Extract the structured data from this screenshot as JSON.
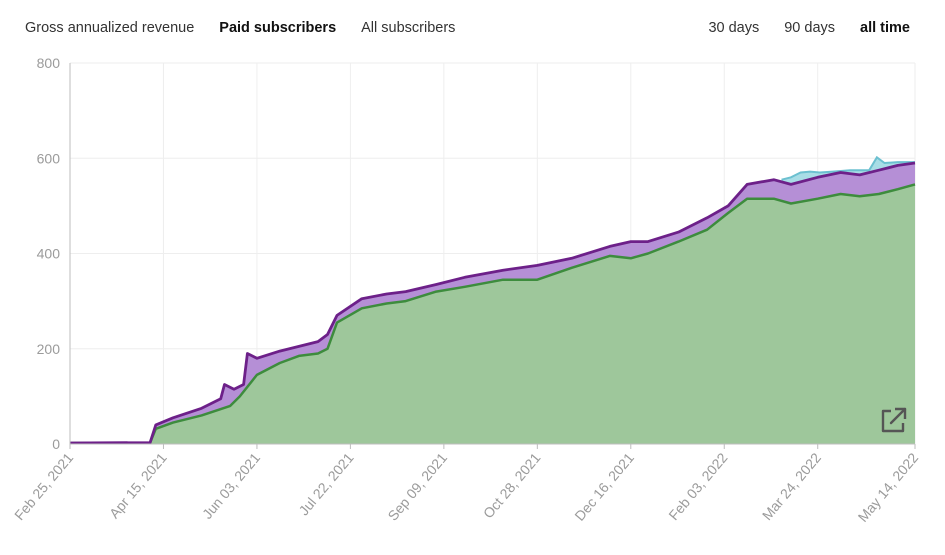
{
  "tabs_left": [
    {
      "label": "Gross annualized revenue",
      "active": false
    },
    {
      "label": "Paid subscribers",
      "active": true
    },
    {
      "label": "All subscribers",
      "active": false
    }
  ],
  "tabs_right": [
    {
      "label": "30 days",
      "active": false
    },
    {
      "label": "90 days",
      "active": false
    },
    {
      "label": "all time",
      "active": true
    }
  ],
  "popout_icon": "external-link-icon",
  "colors": {
    "grid": "#eeeeee",
    "axis": "#bdbdbd",
    "tick": "#9b9b9b",
    "green_fill": "#9ec79b",
    "green_line": "#3d8c3d",
    "purple_fill": "#b58fd6",
    "purple_line": "#6d2089",
    "cyan_fill": "#a8dde6",
    "cyan_line": "#6cc0d0"
  },
  "chart_data": {
    "type": "area",
    "title": "",
    "xlabel": "",
    "ylabel": "",
    "ylim": [
      0,
      800
    ],
    "xlim": [
      "2021-02-25",
      "2022-05-14"
    ],
    "yticks": [
      0,
      200,
      400,
      600,
      800
    ],
    "xticks": [
      "Feb 25, 2021",
      "Apr 15, 2021",
      "Jun 03, 2021",
      "Jul 22, 2021",
      "Sep 09, 2021",
      "Oct 28, 2021",
      "Dec 16, 2021",
      "Feb 03, 2022",
      "Mar 24, 2022",
      "May 14, 2022"
    ],
    "grid": true,
    "legend": "none",
    "series": [
      {
        "color": "green",
        "x": [
          "2021-02-25",
          "2021-04-08",
          "2021-04-11",
          "2021-04-20",
          "2021-05-05",
          "2021-05-20",
          "2021-05-25",
          "2021-06-03",
          "2021-06-15",
          "2021-06-25",
          "2021-07-05",
          "2021-07-10",
          "2021-07-15",
          "2021-07-28",
          "2021-08-10",
          "2021-08-20",
          "2021-09-05",
          "2021-09-20",
          "2021-10-10",
          "2021-10-28",
          "2021-11-15",
          "2021-12-05",
          "2021-12-16",
          "2021-12-25",
          "2022-01-10",
          "2022-01-25",
          "2022-02-05",
          "2022-02-15",
          "2022-03-01",
          "2022-03-10",
          "2022-03-24",
          "2022-04-05",
          "2022-04-15",
          "2022-04-25",
          "2022-05-05",
          "2022-05-14"
        ],
        "y": [
          2,
          3,
          32,
          45,
          60,
          80,
          100,
          145,
          170,
          185,
          190,
          200,
          255,
          285,
          295,
          300,
          320,
          330,
          345,
          345,
          370,
          395,
          390,
          400,
          425,
          450,
          485,
          515,
          515,
          505,
          515,
          525,
          520,
          525,
          535,
          545
        ]
      },
      {
        "color": "purple",
        "x": [
          "2021-02-25",
          "2021-04-08",
          "2021-04-11",
          "2021-04-20",
          "2021-05-05",
          "2021-05-15",
          "2021-05-17",
          "2021-05-22",
          "2021-05-27",
          "2021-05-29",
          "2021-06-03",
          "2021-06-15",
          "2021-06-25",
          "2021-07-05",
          "2021-07-10",
          "2021-07-15",
          "2021-07-28",
          "2021-08-10",
          "2021-08-20",
          "2021-09-05",
          "2021-09-20",
          "2021-10-10",
          "2021-10-28",
          "2021-11-15",
          "2021-12-05",
          "2021-12-16",
          "2021-12-25",
          "2022-01-10",
          "2022-01-25",
          "2022-02-05",
          "2022-02-15",
          "2022-03-01",
          "2022-03-10",
          "2022-03-24",
          "2022-04-05",
          "2022-04-15",
          "2022-04-25",
          "2022-05-05",
          "2022-05-14"
        ],
        "y": [
          2,
          3,
          40,
          55,
          75,
          95,
          125,
          115,
          125,
          190,
          180,
          195,
          205,
          215,
          230,
          270,
          305,
          315,
          320,
          335,
          350,
          365,
          375,
          390,
          415,
          425,
          425,
          445,
          475,
          500,
          545,
          555,
          545,
          560,
          570,
          565,
          575,
          585,
          590
        ]
      },
      {
        "color": "cyan",
        "x": [
          "2022-03-05",
          "2022-03-10",
          "2022-03-15",
          "2022-03-20",
          "2022-03-25",
          "2022-04-01",
          "2022-04-10",
          "2022-04-20",
          "2022-04-24",
          "2022-04-28",
          "2022-05-05",
          "2022-05-14"
        ],
        "y": [
          555,
          560,
          570,
          572,
          570,
          572,
          575,
          575,
          602,
          590,
          592,
          592
        ]
      }
    ]
  }
}
